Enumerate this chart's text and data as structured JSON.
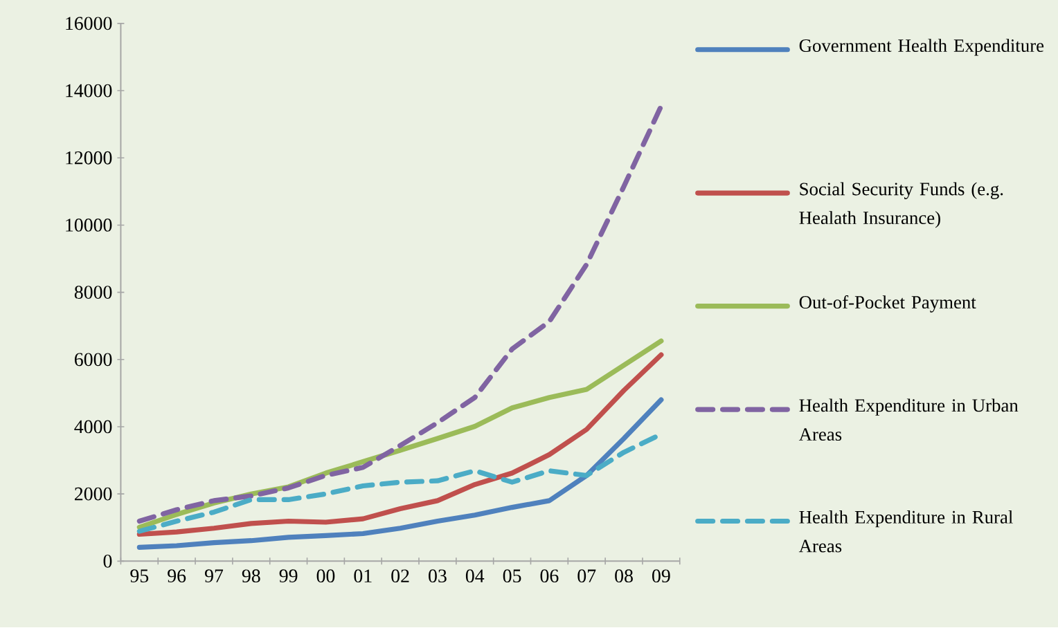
{
  "chart_data": {
    "type": "line",
    "categories": [
      "95",
      "96",
      "97",
      "98",
      "99",
      "00",
      "01",
      "02",
      "03",
      "04",
      "05",
      "06",
      "07",
      "08",
      "09"
    ],
    "ylim": [
      0,
      16000
    ],
    "yticks": [
      0,
      2000,
      4000,
      6000,
      8000,
      10000,
      12000,
      14000,
      16000
    ],
    "legend": "right",
    "grid": false,
    "series": [
      {
        "name": "Government Health Expenditure",
        "color": "#4f81bd",
        "line_style": "solid",
        "values": [
          410,
          460,
          550,
          610,
          710,
          760,
          820,
          980,
          1190,
          1370,
          1600,
          1800,
          2550,
          3650,
          4800
        ]
      },
      {
        "name": "Social Security Funds (e.g. Healath Insurance)",
        "color": "#c0504d",
        "line_style": "solid",
        "values": [
          800,
          870,
          980,
          1120,
          1190,
          1160,
          1260,
          1560,
          1800,
          2280,
          2620,
          3170,
          3920,
          5080,
          6140
        ]
      },
      {
        "name": "Out-of-Pocket Payment",
        "color": "#9bbb59",
        "line_style": "solid",
        "values": [
          1010,
          1390,
          1730,
          2000,
          2210,
          2620,
          2960,
          3300,
          3650,
          4010,
          4560,
          4870,
          5110,
          5830,
          6550
        ]
      },
      {
        "name": "Health Expenditure in Urban Areas",
        "color": "#8064a2",
        "line_style": "dashed",
        "values": [
          1190,
          1530,
          1800,
          1940,
          2180,
          2550,
          2790,
          3440,
          4120,
          4870,
          6310,
          7130,
          8830,
          11150,
          13540
        ]
      },
      {
        "name": "Health Expenditure in Rural Areas",
        "color": "#4bacc6",
        "line_style": "dashed",
        "values": [
          890,
          1190,
          1460,
          1830,
          1830,
          2000,
          2240,
          2350,
          2390,
          2690,
          2350,
          2690,
          2550,
          3240,
          3780
        ]
      }
    ]
  }
}
